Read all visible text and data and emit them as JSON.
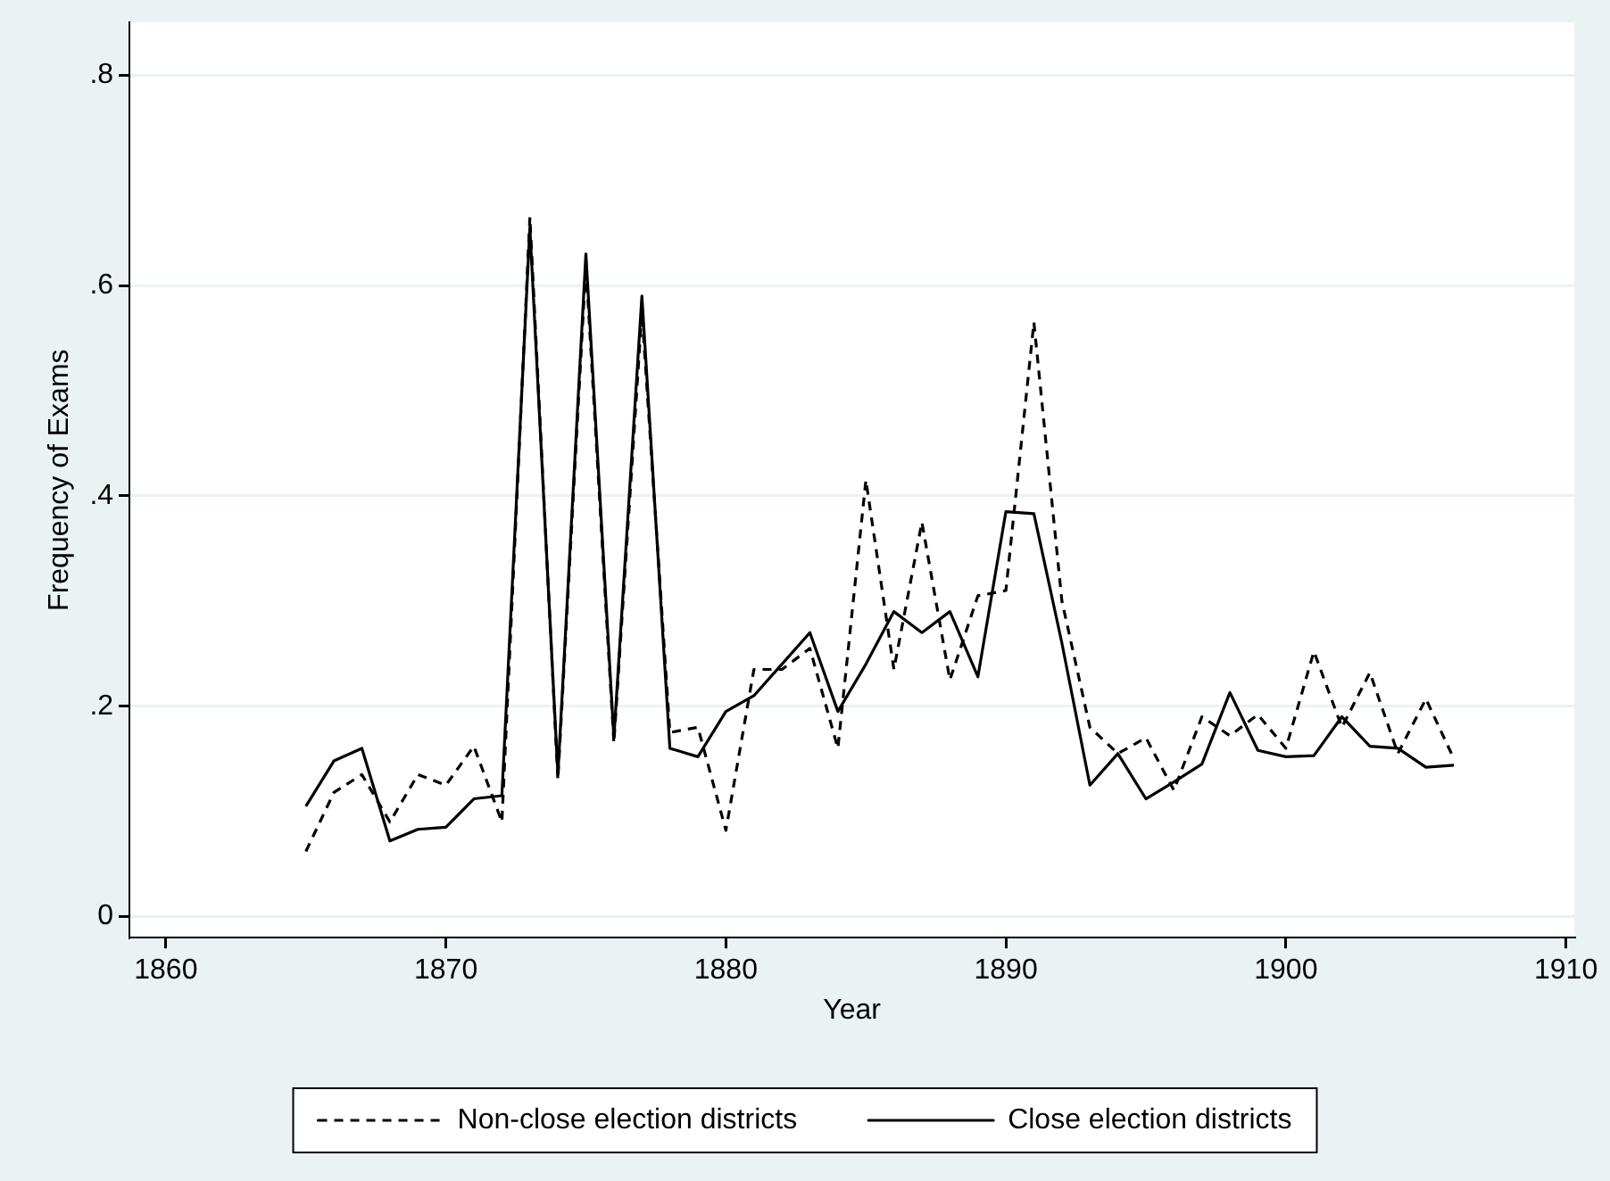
{
  "chart_data": {
    "type": "line",
    "xlabel": "Year",
    "ylabel": "Frequency of Exams",
    "x": [
      1865,
      1866,
      1867,
      1868,
      1869,
      1870,
      1871,
      1872,
      1873,
      1874,
      1875,
      1876,
      1877,
      1878,
      1879,
      1880,
      1881,
      1882,
      1883,
      1884,
      1885,
      1886,
      1887,
      1888,
      1889,
      1890,
      1891,
      1892,
      1893,
      1894,
      1895,
      1896,
      1897,
      1898,
      1899,
      1900,
      1901,
      1902,
      1903,
      1904,
      1905,
      1906
    ],
    "series": [
      {
        "name": "Non-close election districts",
        "color": "#000000",
        "line_style": "dashed",
        "values": [
          0.062,
          0.118,
          0.135,
          0.09,
          0.135,
          0.125,
          0.162,
          0.09,
          0.665,
          0.13,
          0.62,
          0.165,
          0.575,
          0.175,
          0.18,
          0.082,
          0.235,
          0.235,
          0.255,
          0.16,
          0.415,
          0.235,
          0.375,
          0.225,
          0.305,
          0.31,
          0.565,
          0.3,
          0.18,
          0.155,
          0.17,
          0.12,
          0.19,
          0.172,
          0.192,
          0.16,
          0.252,
          0.18,
          0.232,
          0.155,
          0.207,
          0.15
        ]
      },
      {
        "name": "Close election districts",
        "color": "#000000",
        "line_style": "solid",
        "values": [
          0.105,
          0.148,
          0.16,
          0.072,
          0.083,
          0.085,
          0.112,
          0.115,
          0.655,
          0.135,
          0.63,
          0.17,
          0.59,
          0.16,
          0.152,
          0.195,
          0.21,
          0.24,
          0.27,
          0.195,
          0.24,
          0.29,
          0.27,
          0.29,
          0.228,
          0.385,
          0.383,
          0.26,
          0.125,
          0.155,
          0.112,
          0.128,
          0.145,
          0.213,
          0.158,
          0.152,
          0.153,
          0.19,
          0.162,
          0.16,
          0.142,
          0.144
        ]
      }
    ],
    "xlim": [
      1858.7,
      1910.3
    ],
    "xticks": [
      1860,
      1870,
      1880,
      1890,
      1900,
      1910
    ],
    "ylim": [
      -0.02,
      0.85
    ],
    "yticks": [
      0,
      {
        "value": 0.2,
        "label": ".2"
      },
      {
        "value": 0.4,
        "label": ".4"
      },
      {
        "value": 0.6,
        "label": ".6"
      },
      {
        "value": 0.8,
        "label": ".8"
      }
    ],
    "grid": "y",
    "legend": "bottom",
    "marker": "none"
  }
}
